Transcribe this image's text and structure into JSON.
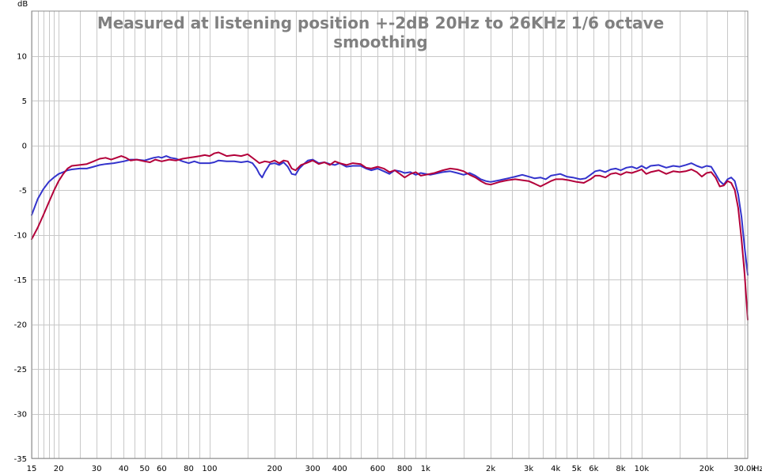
{
  "chart_data": {
    "type": "line",
    "title_lines": [
      "Measured at listening position +-2dB 20Hz to 26KHz 1/6 octave",
      "smoothing"
    ],
    "y_unit": "dB",
    "x_unit": "Hz",
    "x_scale": "log",
    "xlim": [
      15,
      31000
    ],
    "ylim": [
      -35,
      15
    ],
    "grid": true,
    "y_ticks": [
      {
        "value": 10,
        "label": "10"
      },
      {
        "value": 5,
        "label": "5"
      },
      {
        "value": 0,
        "label": "0"
      },
      {
        "value": -5,
        "label": "-5"
      },
      {
        "value": -10,
        "label": "-10"
      },
      {
        "value": -15,
        "label": "-15"
      },
      {
        "value": -20,
        "label": "-20"
      },
      {
        "value": -25,
        "label": "-25"
      },
      {
        "value": -30,
        "label": "-30"
      },
      {
        "value": -35,
        "label": "-35"
      }
    ],
    "x_ticks": [
      {
        "value": 15,
        "label": "15"
      },
      {
        "value": 20,
        "label": "20"
      },
      {
        "value": 30,
        "label": "30"
      },
      {
        "value": 40,
        "label": "40"
      },
      {
        "value": 50,
        "label": "50"
      },
      {
        "value": 60,
        "label": "60"
      },
      {
        "value": 80,
        "label": "80"
      },
      {
        "value": 100,
        "label": "100"
      },
      {
        "value": 200,
        "label": "200"
      },
      {
        "value": 300,
        "label": "300"
      },
      {
        "value": 400,
        "label": "400"
      },
      {
        "value": 600,
        "label": "600"
      },
      {
        "value": 800,
        "label": "800"
      },
      {
        "value": 1000,
        "label": "1k"
      },
      {
        "value": 2000,
        "label": "2k"
      },
      {
        "value": 3000,
        "label": "3k"
      },
      {
        "value": 4000,
        "label": "4k"
      },
      {
        "value": 5000,
        "label": "5k"
      },
      {
        "value": 6000,
        "label": "6k"
      },
      {
        "value": 8000,
        "label": "8k"
      },
      {
        "value": 10000,
        "label": "10k"
      },
      {
        "value": 20000,
        "label": "20k"
      },
      {
        "value": 30000,
        "label": "30.0k"
      }
    ],
    "x_minor_grid": [
      15,
      16,
      17,
      18,
      19,
      20,
      25,
      30,
      35,
      40,
      45,
      50,
      60,
      70,
      80,
      90,
      100,
      150,
      200,
      250,
      300,
      350,
      400,
      450,
      500,
      600,
      700,
      800,
      900,
      1000,
      1500,
      2000,
      2500,
      3000,
      3500,
      4000,
      4500,
      5000,
      6000,
      7000,
      8000,
      9000,
      10000,
      15000,
      20000,
      25000,
      30000
    ],
    "series": [
      {
        "color": "#3333cc",
        "points": [
          [
            15,
            -7.8
          ],
          [
            16,
            -6.0
          ],
          [
            17,
            -4.9
          ],
          [
            18,
            -4.1
          ],
          [
            19,
            -3.6
          ],
          [
            20,
            -3.2
          ],
          [
            21,
            -3.0
          ],
          [
            22,
            -2.8
          ],
          [
            23,
            -2.7
          ],
          [
            25,
            -2.6
          ],
          [
            27,
            -2.6
          ],
          [
            29,
            -2.4
          ],
          [
            31,
            -2.2
          ],
          [
            33,
            -2.1
          ],
          [
            36,
            -2.0
          ],
          [
            40,
            -1.8
          ],
          [
            43,
            -1.6
          ],
          [
            46,
            -1.6
          ],
          [
            50,
            -1.7
          ],
          [
            55,
            -1.4
          ],
          [
            58,
            -1.3
          ],
          [
            60,
            -1.4
          ],
          [
            63,
            -1.2
          ],
          [
            66,
            -1.4
          ],
          [
            70,
            -1.5
          ],
          [
            75,
            -1.8
          ],
          [
            80,
            -2.0
          ],
          [
            85,
            -1.8
          ],
          [
            90,
            -2.0
          ],
          [
            95,
            -2.0
          ],
          [
            100,
            -2.0
          ],
          [
            105,
            -1.9
          ],
          [
            110,
            -1.7
          ],
          [
            120,
            -1.8
          ],
          [
            130,
            -1.8
          ],
          [
            140,
            -1.9
          ],
          [
            150,
            -1.8
          ],
          [
            158,
            -2.0
          ],
          [
            165,
            -2.6
          ],
          [
            170,
            -3.2
          ],
          [
            175,
            -3.6
          ],
          [
            180,
            -3.0
          ],
          [
            190,
            -2.1
          ],
          [
            200,
            -2.0
          ],
          [
            210,
            -2.2
          ],
          [
            220,
            -1.9
          ],
          [
            230,
            -2.4
          ],
          [
            240,
            -3.2
          ],
          [
            250,
            -3.3
          ],
          [
            260,
            -2.6
          ],
          [
            270,
            -2.2
          ],
          [
            285,
            -1.7
          ],
          [
            300,
            -1.6
          ],
          [
            320,
            -2.0
          ],
          [
            340,
            -1.9
          ],
          [
            360,
            -2.1
          ],
          [
            380,
            -2.2
          ],
          [
            400,
            -2.0
          ],
          [
            430,
            -2.4
          ],
          [
            460,
            -2.3
          ],
          [
            500,
            -2.3
          ],
          [
            530,
            -2.6
          ],
          [
            560,
            -2.8
          ],
          [
            600,
            -2.6
          ],
          [
            640,
            -2.9
          ],
          [
            680,
            -3.2
          ],
          [
            720,
            -2.8
          ],
          [
            760,
            -2.9
          ],
          [
            800,
            -3.1
          ],
          [
            850,
            -3.0
          ],
          [
            900,
            -3.3
          ],
          [
            950,
            -3.1
          ],
          [
            1000,
            -3.2
          ],
          [
            1050,
            -3.3
          ],
          [
            1100,
            -3.2
          ],
          [
            1200,
            -3.0
          ],
          [
            1300,
            -2.9
          ],
          [
            1400,
            -3.1
          ],
          [
            1500,
            -3.3
          ],
          [
            1600,
            -3.1
          ],
          [
            1700,
            -3.4
          ],
          [
            1800,
            -3.8
          ],
          [
            1900,
            -4.0
          ],
          [
            2000,
            -4.1
          ],
          [
            2200,
            -3.9
          ],
          [
            2400,
            -3.7
          ],
          [
            2600,
            -3.5
          ],
          [
            2800,
            -3.3
          ],
          [
            3000,
            -3.5
          ],
          [
            3200,
            -3.7
          ],
          [
            3400,
            -3.6
          ],
          [
            3600,
            -3.8
          ],
          [
            3800,
            -3.4
          ],
          [
            4000,
            -3.3
          ],
          [
            4200,
            -3.2
          ],
          [
            4500,
            -3.5
          ],
          [
            4800,
            -3.6
          ],
          [
            5200,
            -3.8
          ],
          [
            5500,
            -3.7
          ],
          [
            5800,
            -3.3
          ],
          [
            6100,
            -2.9
          ],
          [
            6400,
            -2.8
          ],
          [
            6800,
            -3.0
          ],
          [
            7200,
            -2.7
          ],
          [
            7600,
            -2.6
          ],
          [
            8000,
            -2.8
          ],
          [
            8500,
            -2.5
          ],
          [
            9000,
            -2.4
          ],
          [
            9500,
            -2.6
          ],
          [
            10000,
            -2.3
          ],
          [
            10500,
            -2.6
          ],
          [
            11000,
            -2.3
          ],
          [
            12000,
            -2.2
          ],
          [
            13000,
            -2.5
          ],
          [
            14000,
            -2.3
          ],
          [
            15000,
            -2.4
          ],
          [
            16000,
            -2.2
          ],
          [
            17000,
            -2.0
          ],
          [
            18000,
            -2.3
          ],
          [
            19000,
            -2.5
          ],
          [
            20000,
            -2.3
          ],
          [
            21000,
            -2.4
          ],
          [
            22000,
            -3.2
          ],
          [
            23000,
            -4.0
          ],
          [
            24000,
            -4.4
          ],
          [
            25000,
            -3.8
          ],
          [
            26000,
            -3.6
          ],
          [
            27000,
            -4.0
          ],
          [
            28000,
            -5.5
          ],
          [
            29000,
            -8.0
          ],
          [
            30000,
            -11.5
          ],
          [
            31000,
            -14.5
          ]
        ]
      },
      {
        "color": "#b3003a",
        "points": [
          [
            15,
            -10.5
          ],
          [
            16,
            -9.2
          ],
          [
            17,
            -7.8
          ],
          [
            18,
            -6.4
          ],
          [
            19,
            -5.1
          ],
          [
            20,
            -4.0
          ],
          [
            21,
            -3.2
          ],
          [
            22,
            -2.6
          ],
          [
            23,
            -2.3
          ],
          [
            25,
            -2.2
          ],
          [
            27,
            -2.1
          ],
          [
            29,
            -1.8
          ],
          [
            31,
            -1.5
          ],
          [
            33,
            -1.4
          ],
          [
            35,
            -1.6
          ],
          [
            37,
            -1.4
          ],
          [
            39,
            -1.2
          ],
          [
            41,
            -1.4
          ],
          [
            43,
            -1.7
          ],
          [
            46,
            -1.6
          ],
          [
            50,
            -1.8
          ],
          [
            53,
            -1.9
          ],
          [
            56,
            -1.6
          ],
          [
            60,
            -1.8
          ],
          [
            65,
            -1.6
          ],
          [
            70,
            -1.7
          ],
          [
            75,
            -1.5
          ],
          [
            80,
            -1.4
          ],
          [
            85,
            -1.3
          ],
          [
            90,
            -1.2
          ],
          [
            95,
            -1.1
          ],
          [
            100,
            -1.2
          ],
          [
            105,
            -0.9
          ],
          [
            110,
            -0.8
          ],
          [
            115,
            -1.0
          ],
          [
            120,
            -1.2
          ],
          [
            130,
            -1.1
          ],
          [
            140,
            -1.2
          ],
          [
            150,
            -1.0
          ],
          [
            160,
            -1.5
          ],
          [
            170,
            -2.0
          ],
          [
            180,
            -1.8
          ],
          [
            190,
            -1.9
          ],
          [
            200,
            -1.7
          ],
          [
            210,
            -2.0
          ],
          [
            220,
            -1.7
          ],
          [
            230,
            -1.8
          ],
          [
            240,
            -2.6
          ],
          [
            250,
            -2.8
          ],
          [
            265,
            -2.2
          ],
          [
            280,
            -2.0
          ],
          [
            300,
            -1.7
          ],
          [
            320,
            -2.1
          ],
          [
            340,
            -1.9
          ],
          [
            360,
            -2.2
          ],
          [
            380,
            -1.8
          ],
          [
            400,
            -2.0
          ],
          [
            430,
            -2.2
          ],
          [
            460,
            -2.0
          ],
          [
            500,
            -2.1
          ],
          [
            530,
            -2.5
          ],
          [
            560,
            -2.6
          ],
          [
            600,
            -2.4
          ],
          [
            640,
            -2.6
          ],
          [
            680,
            -3.0
          ],
          [
            720,
            -2.8
          ],
          [
            760,
            -3.2
          ],
          [
            800,
            -3.6
          ],
          [
            850,
            -3.2
          ],
          [
            900,
            -3.0
          ],
          [
            950,
            -3.4
          ],
          [
            1000,
            -3.3
          ],
          [
            1100,
            -3.1
          ],
          [
            1200,
            -2.8
          ],
          [
            1300,
            -2.6
          ],
          [
            1400,
            -2.7
          ],
          [
            1500,
            -2.9
          ],
          [
            1600,
            -3.3
          ],
          [
            1700,
            -3.6
          ],
          [
            1800,
            -4.0
          ],
          [
            1900,
            -4.3
          ],
          [
            2000,
            -4.4
          ],
          [
            2200,
            -4.1
          ],
          [
            2400,
            -3.9
          ],
          [
            2600,
            -3.8
          ],
          [
            2800,
            -3.9
          ],
          [
            3000,
            -4.0
          ],
          [
            3200,
            -4.3
          ],
          [
            3400,
            -4.6
          ],
          [
            3600,
            -4.3
          ],
          [
            3800,
            -4.0
          ],
          [
            4000,
            -3.8
          ],
          [
            4300,
            -3.8
          ],
          [
            4600,
            -3.9
          ],
          [
            5000,
            -4.1
          ],
          [
            5400,
            -4.2
          ],
          [
            5800,
            -3.8
          ],
          [
            6100,
            -3.4
          ],
          [
            6400,
            -3.4
          ],
          [
            6800,
            -3.6
          ],
          [
            7200,
            -3.2
          ],
          [
            7600,
            -3.1
          ],
          [
            8000,
            -3.3
          ],
          [
            8500,
            -3.0
          ],
          [
            9000,
            -3.1
          ],
          [
            9500,
            -2.9
          ],
          [
            10000,
            -2.7
          ],
          [
            10500,
            -3.2
          ],
          [
            11000,
            -3.0
          ],
          [
            12000,
            -2.8
          ],
          [
            13000,
            -3.2
          ],
          [
            14000,
            -2.9
          ],
          [
            15000,
            -3.0
          ],
          [
            16000,
            -2.9
          ],
          [
            17000,
            -2.7
          ],
          [
            18000,
            -3.0
          ],
          [
            19000,
            -3.5
          ],
          [
            20000,
            -3.1
          ],
          [
            21000,
            -3.0
          ],
          [
            22000,
            -3.6
          ],
          [
            23000,
            -4.6
          ],
          [
            24000,
            -4.5
          ],
          [
            25000,
            -4.0
          ],
          [
            26000,
            -4.2
          ],
          [
            27000,
            -5.0
          ],
          [
            28000,
            -7.0
          ],
          [
            29000,
            -10.5
          ],
          [
            30000,
            -14.5
          ],
          [
            31000,
            -19.5
          ]
        ]
      }
    ]
  }
}
